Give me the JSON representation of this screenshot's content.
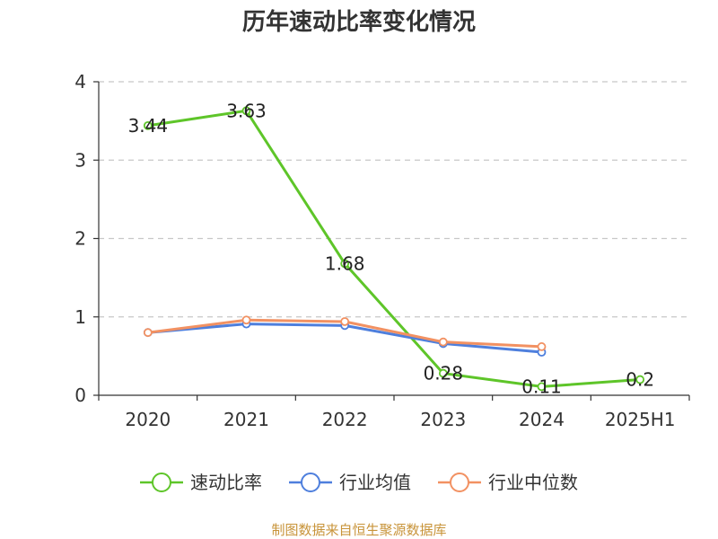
{
  "chart_data": {
    "type": "line",
    "title": "历年速动比率变化情况",
    "categories": [
      "2020",
      "2021",
      "2022",
      "2023",
      "2024",
      "2025H1"
    ],
    "ylim": [
      0,
      4
    ],
    "yticks": [
      0,
      1,
      2,
      3,
      4
    ],
    "grid": true,
    "legend_position": "bottom",
    "series": [
      {
        "name": "速动比率",
        "color": "#5ec529",
        "values": [
          3.44,
          3.63,
          1.68,
          0.28,
          0.11,
          0.2
        ],
        "labels": [
          "3.44",
          "3.63",
          "1.68",
          "0.28",
          "0.11",
          "0.2"
        ],
        "show_labels": true
      },
      {
        "name": "行业均值",
        "color": "#4e7fdd",
        "values": [
          0.8,
          0.91,
          0.89,
          0.66,
          0.55,
          null
        ],
        "show_labels": false
      },
      {
        "name": "行业中位数",
        "color": "#f29162",
        "values": [
          0.8,
          0.96,
          0.94,
          0.68,
          0.62,
          null
        ],
        "show_labels": false
      }
    ]
  },
  "footer": "制图数据来自恒生聚源数据库"
}
